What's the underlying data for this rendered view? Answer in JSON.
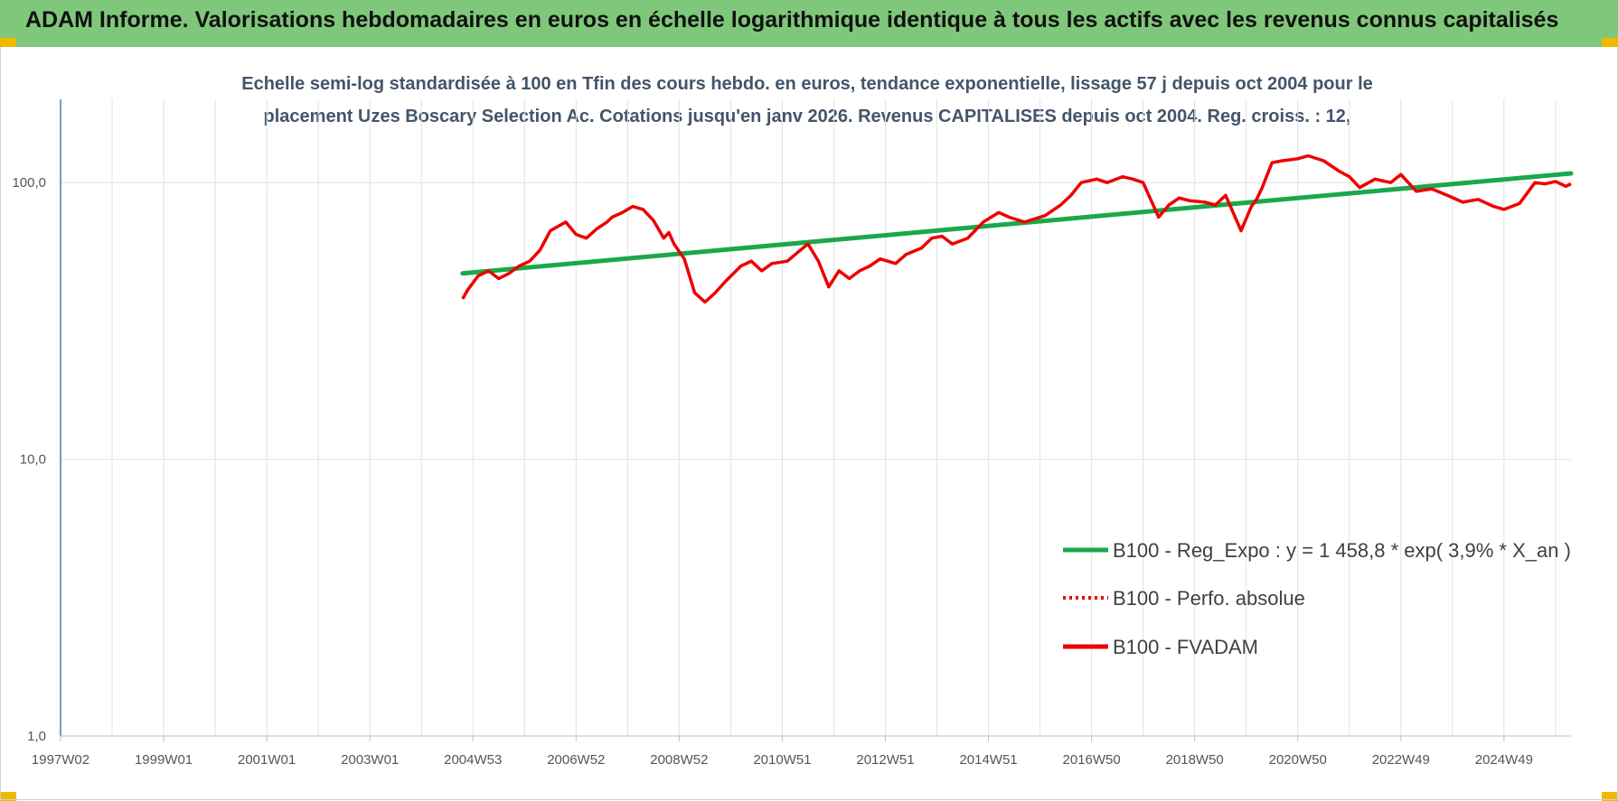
{
  "header": {
    "title": "ADAM Informe. Valorisations hebdomadaires en euros en échelle logarithmique identique à tous les actifs avec les revenus connus capitalisés"
  },
  "colors": {
    "header_bg": "#7fc77a",
    "trend": "#1aa84a",
    "series": "#ee0000",
    "grid": "#e2e2e2",
    "axis": "#4a7ab5",
    "corner": "#f2b800"
  },
  "chart_data": {
    "type": "line",
    "title_lines": [
      "Echelle semi-log standardisée à 100 en Tfin des cours hebdo. en euros, tendance exponentielle, lissage 57 j depuis oct 2004 pour le",
      "placement Uzes Boscary Selection Ac. Cotations jusqu'en janv 2026. Revenus CAPITALISES depuis oct 2004. Reg. croiss. : 12,"
    ],
    "y_scale": "log",
    "ylim": [
      1,
      200
    ],
    "y_ticks": [
      {
        "value": 1,
        "label": "1,0"
      },
      {
        "value": 10,
        "label": "10,0"
      },
      {
        "value": 100,
        "label": "100,0"
      }
    ],
    "xlim": [
      1997.0,
      2026.3
    ],
    "x_ticks": [
      {
        "value": 1997.0,
        "label": "1997W02"
      },
      {
        "value": 1999.0,
        "label": "1999W01"
      },
      {
        "value": 2001.0,
        "label": "2001W01"
      },
      {
        "value": 2003.0,
        "label": "2003W01"
      },
      {
        "value": 2005.0,
        "label": "2004W53"
      },
      {
        "value": 2007.0,
        "label": "2006W52"
      },
      {
        "value": 2009.0,
        "label": "2008W52"
      },
      {
        "value": 2011.0,
        "label": "2010W51"
      },
      {
        "value": 2013.0,
        "label": "2012W51"
      },
      {
        "value": 2015.0,
        "label": "2014W51"
      },
      {
        "value": 2017.0,
        "label": "2016W50"
      },
      {
        "value": 2019.0,
        "label": "2018W50"
      },
      {
        "value": 2021.0,
        "label": "2020W50"
      },
      {
        "value": 2023.0,
        "label": "2022W49"
      },
      {
        "value": 2025.0,
        "label": "2024W49"
      }
    ],
    "grid": true,
    "legend_position": "bottom-right",
    "legend": [
      {
        "label": "B100 - Reg_Expo : y = 1 458,8 * exp( 3,9% *  X_an )",
        "style": "solid-green"
      },
      {
        "label": "B100 - Perfo. absolue",
        "style": "dotted-red"
      },
      {
        "label": "B100 - FVADAM",
        "style": "solid-red"
      }
    ],
    "series": [
      {
        "name": "B100 - Reg_Expo : y = 1 458,8 * exp( 3,9% *  X_an )",
        "x": [
          2004.8,
          2026.3
        ],
        "y": [
          47,
          108
        ]
      },
      {
        "name": "B100 - FVADAM",
        "x": [
          2004.8,
          2004.9,
          2005.1,
          2005.3,
          2005.5,
          2005.7,
          2005.9,
          2006.1,
          2006.3,
          2006.5,
          2006.8,
          2007.0,
          2007.2,
          2007.4,
          2007.6,
          2007.7,
          2007.9,
          2008.1,
          2008.3,
          2008.5,
          2008.7,
          2008.8,
          2008.9,
          2009.1,
          2009.3,
          2009.5,
          2009.7,
          2009.9,
          2010.2,
          2010.4,
          2010.6,
          2010.8,
          2011.1,
          2011.3,
          2011.5,
          2011.7,
          2011.9,
          2012.1,
          2012.3,
          2012.5,
          2012.7,
          2012.9,
          2013.2,
          2013.4,
          2013.7,
          2013.9,
          2014.1,
          2014.3,
          2014.6,
          2014.9,
          2015.2,
          2015.4,
          2015.7,
          2015.9,
          2016.1,
          2016.4,
          2016.6,
          2016.8,
          2017.1,
          2017.3,
          2017.6,
          2017.8,
          2018.0,
          2018.3,
          2018.5,
          2018.7,
          2018.9,
          2019.2,
          2019.4,
          2019.6,
          2019.9,
          2020.1,
          2020.2,
          2020.3,
          2020.5,
          2020.7,
          2021.0,
          2021.2,
          2021.5,
          2021.8,
          2022.0,
          2022.2,
          2022.5,
          2022.8,
          2023.0,
          2023.3,
          2023.6,
          2023.9,
          2024.2,
          2024.5,
          2024.8,
          2025.0,
          2025.3,
          2025.6,
          2025.8,
          2026.0,
          2026.2,
          2026.3
        ],
        "y": [
          38,
          41,
          46,
          48,
          45,
          47,
          50,
          52,
          57,
          67,
          72,
          65,
          63,
          68,
          72,
          75,
          78,
          82,
          80,
          73,
          63,
          66,
          60,
          53,
          40,
          37,
          40,
          44,
          50,
          52,
          48,
          51,
          52,
          56,
          60,
          52,
          42,
          48,
          45,
          48,
          50,
          53,
          51,
          55,
          58,
          63,
          64,
          60,
          63,
          72,
          78,
          75,
          72,
          74,
          76,
          83,
          90,
          100,
          103,
          100,
          105,
          103,
          100,
          75,
          83,
          88,
          86,
          85,
          83,
          90,
          67,
          82,
          87,
          95,
          118,
          120,
          122,
          125,
          120,
          110,
          105,
          96,
          103,
          100,
          107,
          93,
          95,
          90,
          85,
          87,
          82,
          80,
          84,
          100,
          99,
          101,
          97,
          99
        ]
      }
    ]
  }
}
